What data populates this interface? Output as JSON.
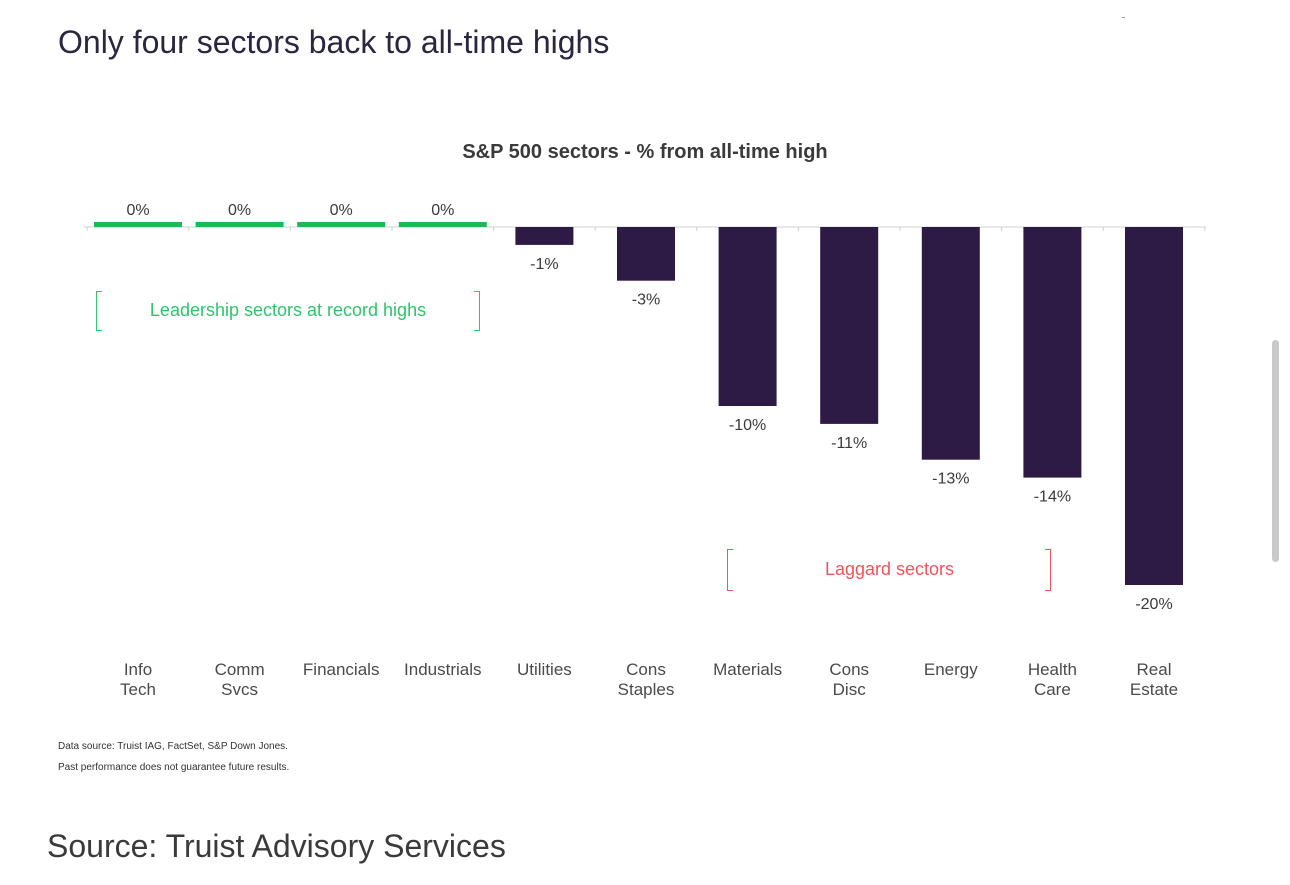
{
  "page_title": "Only four sectors back to all-time highs",
  "source": "Source: Truist Advisory Services",
  "colors": {
    "leader": "#1db954",
    "laggard_bar": "#2d1a45",
    "leader_note": "#2ec56b",
    "laggard_note": "#f2545b"
  },
  "chart_data": {
    "type": "bar",
    "title": "S&P 500 sectors - % from all-time high",
    "xlabel": "",
    "ylabel": "",
    "ylim": [
      -20,
      0
    ],
    "grid": false,
    "categories": [
      [
        "Info",
        "Tech"
      ],
      [
        "Comm",
        "Svcs"
      ],
      [
        "Financials"
      ],
      [
        "Industrials"
      ],
      [
        "Utilities"
      ],
      [
        "Cons",
        "Staples"
      ],
      [
        "Materials"
      ],
      [
        "Cons",
        "Disc"
      ],
      [
        "Energy"
      ],
      [
        "Health",
        "Care"
      ],
      [
        "Real",
        "Estate"
      ]
    ],
    "values": [
      0,
      0,
      0,
      0,
      -1,
      -3,
      -10,
      -11,
      -13,
      -14,
      -20
    ],
    "data_labels": [
      "0%",
      "0%",
      "0%",
      "0%",
      "-1%",
      "-3%",
      "-10%",
      "-11%",
      "-13%",
      "-14%",
      "-20%"
    ],
    "annotations": [
      {
        "text": "Leadership sectors at record highs",
        "style": "leader"
      },
      {
        "text": "Laggard sectors",
        "style": "laggard"
      }
    ],
    "footnotes": [
      "Data source: Truist IAG, FactSet, S&P Down Jones.",
      "Past performance does not guarantee future results."
    ]
  }
}
